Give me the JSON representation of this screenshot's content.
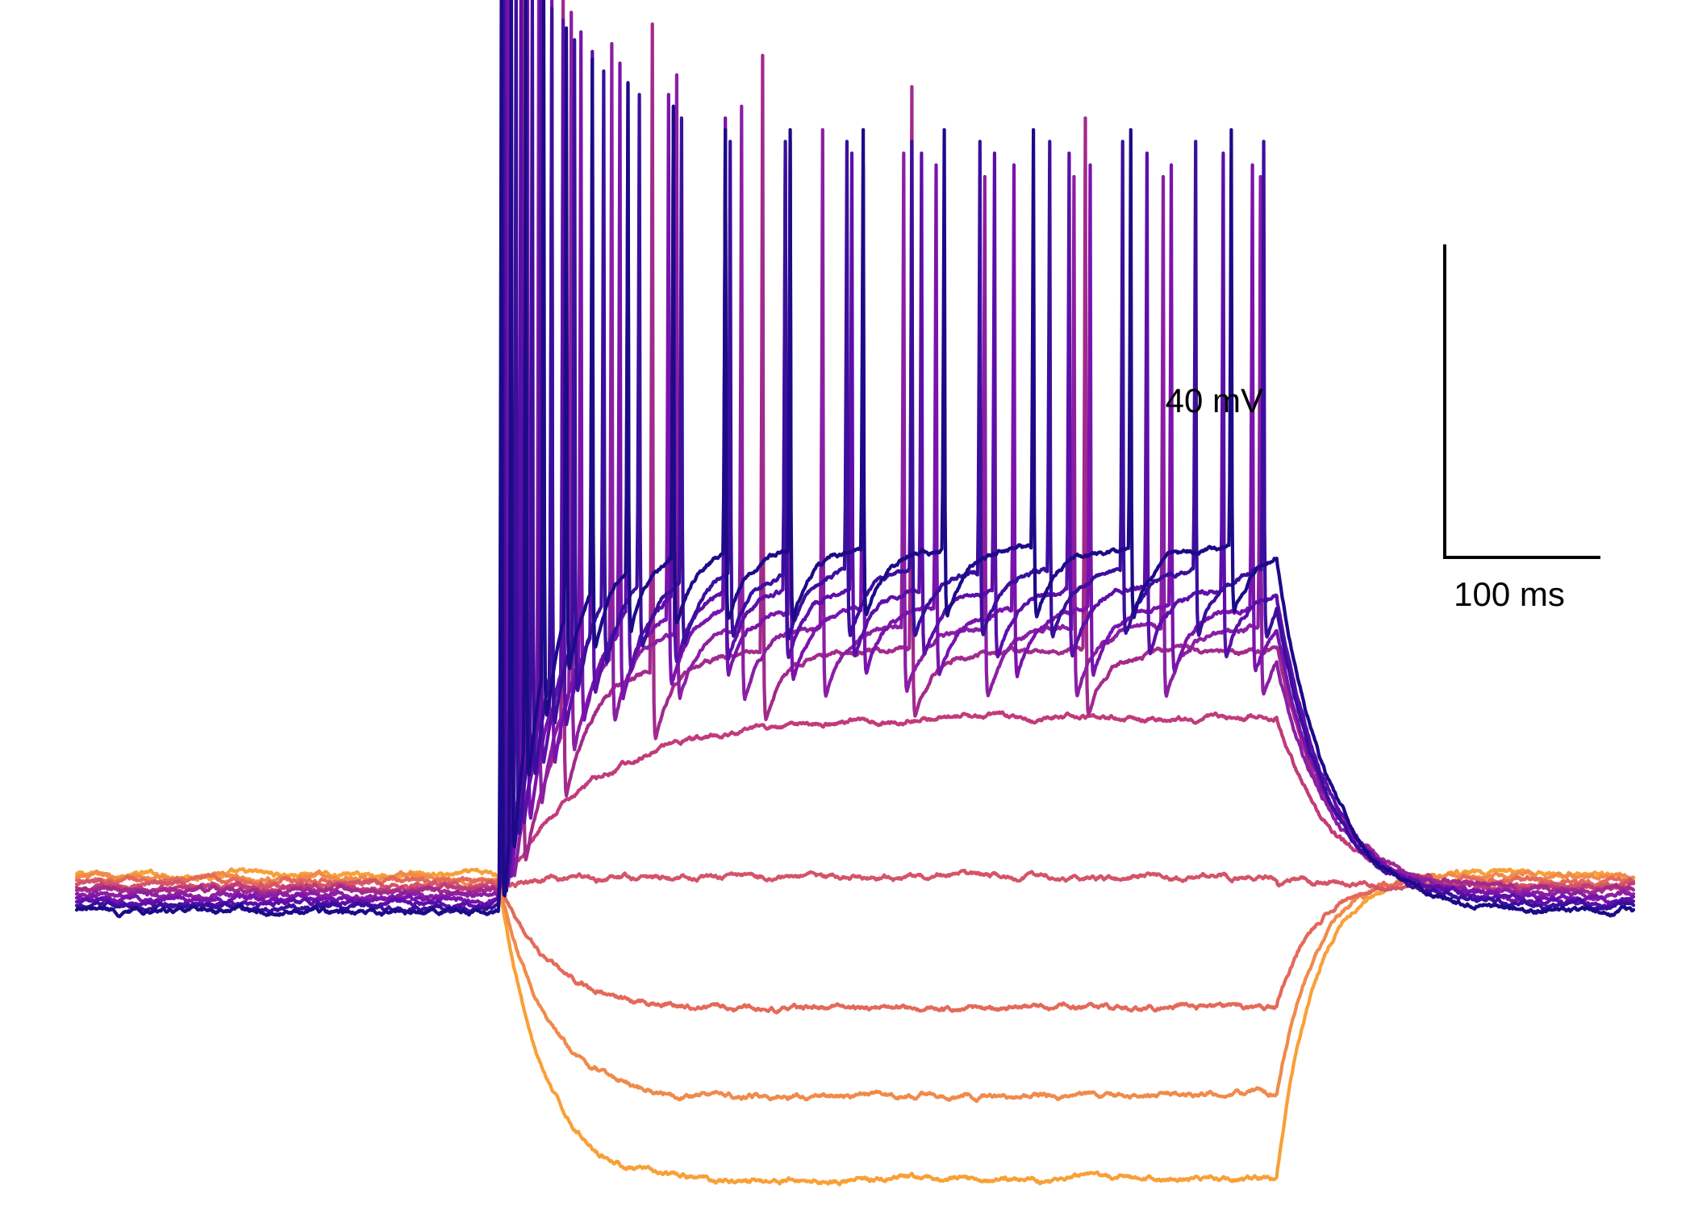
{
  "chart_data": {
    "type": "line",
    "title": "",
    "xlabel": "",
    "ylabel": "",
    "description_units": {
      "x": "ms",
      "y": "mV"
    },
    "x_range_ms": [
      0,
      960
    ],
    "stimulus": {
      "onset_ms": 260,
      "offset_ms": 740
    },
    "scale_bar": {
      "x_value": 100,
      "x_label": "100 ms",
      "y_value": 40,
      "y_label": "40 mV"
    },
    "series": [
      {
        "color": "#f8a037",
        "baseline_mv": 0.8,
        "steady_mv": -39.6,
        "spike_times_ms": [],
        "tau_ms": 28
      },
      {
        "color": "#f08a4b",
        "baseline_mv": 0.4,
        "steady_mv": -28.5,
        "spike_times_ms": [],
        "tau_ms": 30
      },
      {
        "color": "#e4695a",
        "baseline_mv": 0.0,
        "steady_mv": -16.8,
        "spike_times_ms": [],
        "tau_ms": 32
      },
      {
        "color": "#d45468",
        "baseline_mv": -0.5,
        "steady_mv": 0.5,
        "spike_times_ms": [],
        "tau_ms": 40
      },
      {
        "color": "#c13b7a",
        "baseline_mv": -0.9,
        "steady_mv": 21.0,
        "spike_times_ms": [],
        "tau_ms": 60
      },
      {
        "color": "#a22a8c",
        "baseline_mv": -1.3,
        "steady_mv": 29.5,
        "spike_times_ms": [
          275,
          300,
          355,
          423,
          515,
          622
        ],
        "tau_ms": 35
      },
      {
        "color": "#8b1fa3",
        "baseline_mv": -1.8,
        "steady_mv": 32.5,
        "spike_times_ms": [
          268,
          285,
          305,
          330,
          370,
          410,
          460,
          510,
          560,
          615,
          670,
          730
        ],
        "tau_ms": 25
      },
      {
        "color": "#7a13ad",
        "baseline_mv": -2.3,
        "steady_mv": 35.0,
        "spike_times_ms": [
          266,
          278,
          293,
          311,
          335,
          365,
          400,
          440,
          485,
          530,
          578,
          625,
          675,
          725
        ],
        "tau_ms": 22
      },
      {
        "color": "#5c0fa8",
        "baseline_mv": -2.8,
        "steady_mv": 37.5,
        "spike_times_ms": [
          264,
          274,
          286,
          300,
          318,
          340,
          368,
          400,
          437,
          478,
          521,
          566,
          612,
          660,
          707
        ],
        "tau_ms": 20
      },
      {
        "color": "#3b0f9d",
        "baseline_mv": -3.3,
        "steady_mv": 40.0,
        "spike_times_ms": [
          263,
          271,
          281,
          293,
          307,
          325,
          347,
          373,
          403,
          437,
          475,
          515,
          557,
          600,
          645,
          690,
          732
        ],
        "tau_ms": 18
      },
      {
        "color": "#1d0a88",
        "baseline_mv": -3.9,
        "steady_mv": 42.5,
        "spike_times_ms": [
          262,
          268,
          277,
          288,
          302,
          318,
          340,
          368,
          400,
          440,
          485,
          535,
          590,
          650,
          712
        ],
        "tau_ms": 16
      }
    ],
    "spike_peak_mv": [
      121,
      117,
      114,
      110,
      106,
      102,
      99,
      96,
      93
    ]
  }
}
